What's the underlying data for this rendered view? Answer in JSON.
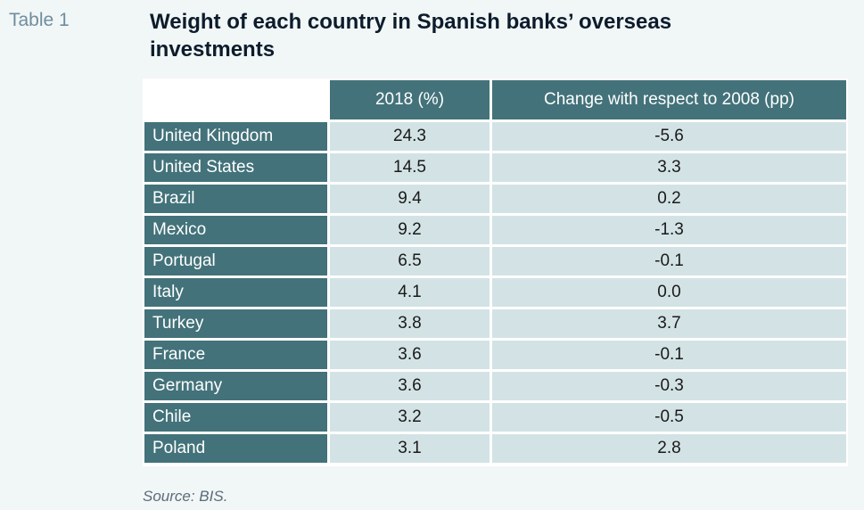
{
  "table_number": "Table 1",
  "title": "Weight of each country in Spanish banks’ overseas investments",
  "columns": {
    "country": "",
    "value_2018": "2018 (%)",
    "change": "Change with respect to 2008 (pp)"
  },
  "rows": [
    {
      "country": "United Kingdom",
      "value_2018": "24.3",
      "change": "-5.6"
    },
    {
      "country": "United States",
      "value_2018": "14.5",
      "change": "3.3"
    },
    {
      "country": "Brazil",
      "value_2018": "9.4",
      "change": "0.2"
    },
    {
      "country": "Mexico",
      "value_2018": "9.2",
      "change": "-1.3"
    },
    {
      "country": "Portugal",
      "value_2018": "6.5",
      "change": "-0.1"
    },
    {
      "country": "Italy",
      "value_2018": "4.1",
      "change": "0.0"
    },
    {
      "country": "Turkey",
      "value_2018": "3.8",
      "change": "3.7"
    },
    {
      "country": "France",
      "value_2018": "3.6",
      "change": "-0.1"
    },
    {
      "country": "Germany",
      "value_2018": "3.6",
      "change": "-0.3"
    },
    {
      "country": "Chile",
      "value_2018": "3.2",
      "change": "-0.5"
    },
    {
      "country": "Poland",
      "value_2018": "3.1",
      "change": "2.8"
    }
  ],
  "source": "Source: BIS.",
  "colors": {
    "page_background": "#f1f6f7",
    "header_fill": "#43727a",
    "country_fill": "#43727a",
    "cell_fill": "#d3e3e5",
    "title_text": "#0c1c2b",
    "table_number_text": "#6f8d9e",
    "source_text": "#5c6c78"
  }
}
